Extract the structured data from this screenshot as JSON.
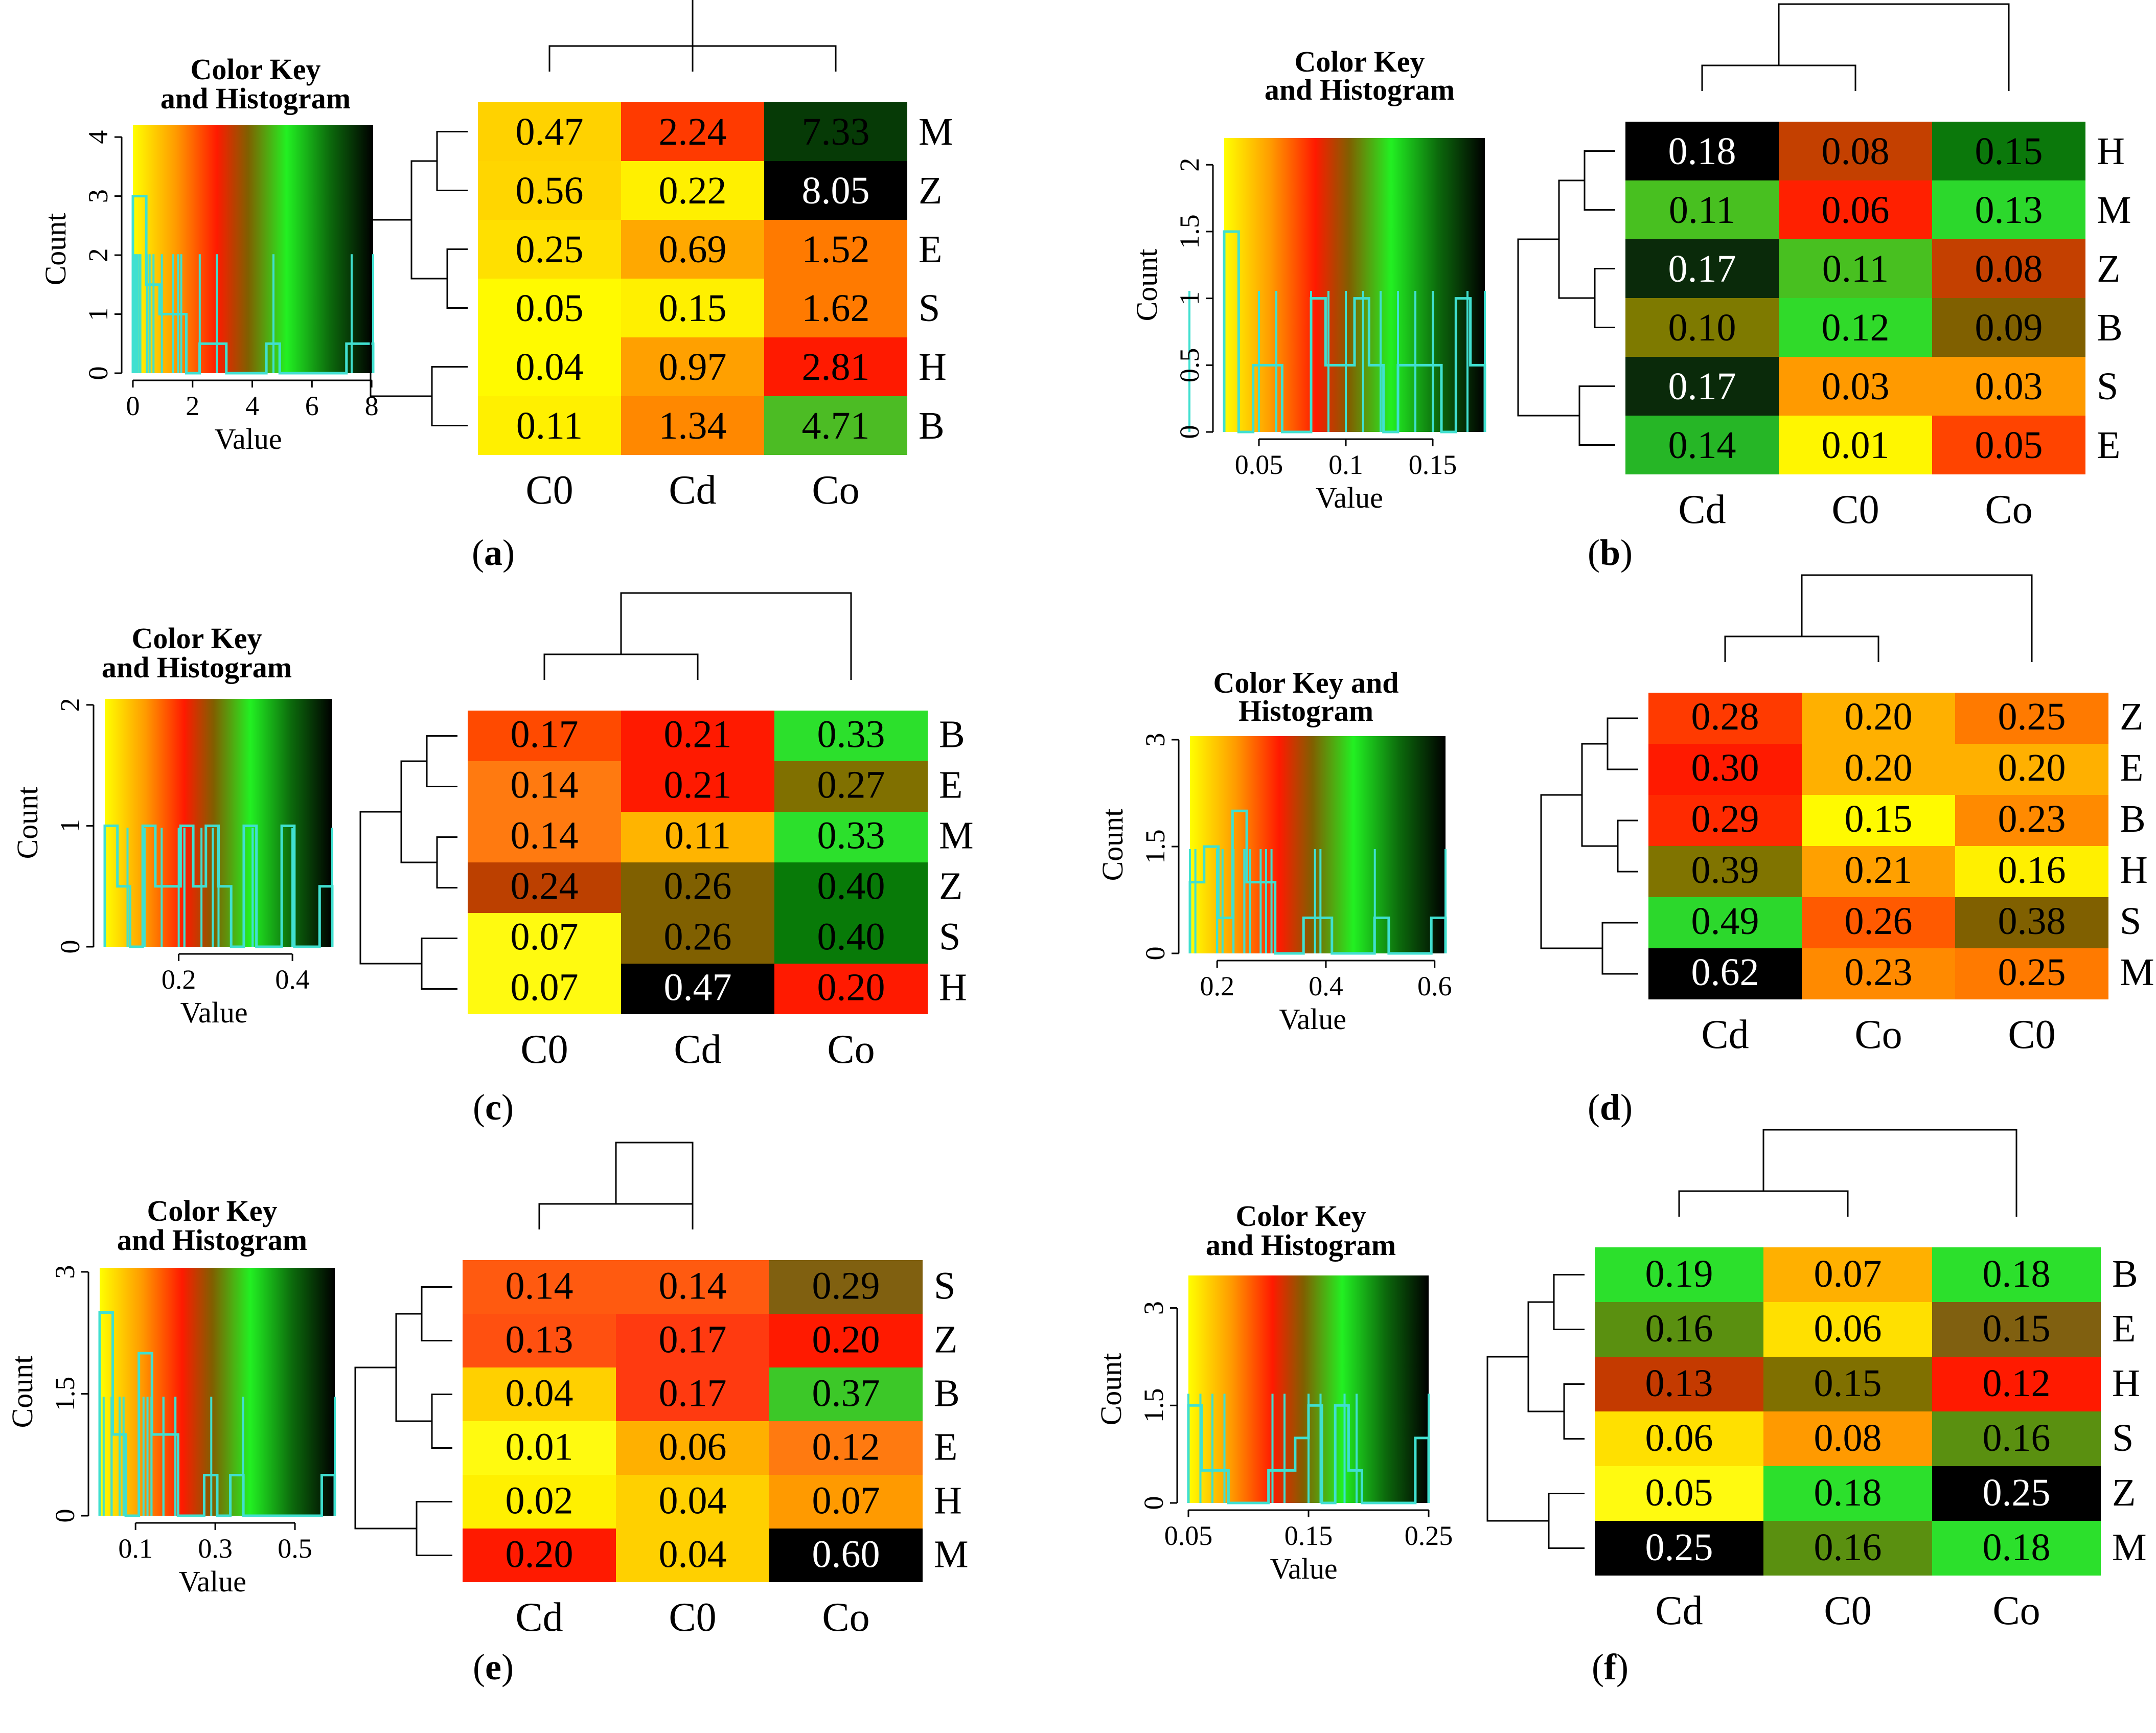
{
  "chart_data": [
    {
      "type": "heatmap",
      "panel_label": "a",
      "color_key_title": [
        "Color Key",
        "and Histogram"
      ],
      "xlabel": "Value",
      "ylabel": "Count",
      "key_xticks": [
        "0",
        "2",
        "4",
        "6",
        "8"
      ],
      "key_xtick_values": [
        0,
        2,
        4,
        6,
        8
      ],
      "key_xrange": [
        0,
        8.05
      ],
      "key_yticks": [
        "0",
        "1",
        "2",
        "3",
        "4"
      ],
      "key_ytick_values": [
        0,
        1,
        2,
        3,
        4
      ],
      "key_yrange": [
        0,
        4.2
      ],
      "histogram_values": [
        0.04,
        0.05,
        0.11,
        0.15,
        0.22,
        0.25,
        0.47,
        0.56,
        0.69,
        0.97,
        1.34,
        1.52,
        1.62,
        2.24,
        2.81,
        4.71,
        7.33,
        8.05
      ],
      "columns": [
        "C0",
        "Cd",
        "Co"
      ],
      "rows": [
        "M",
        "Z",
        "E",
        "S",
        "H",
        "B"
      ],
      "values": [
        [
          "0.47",
          "2.24",
          "7.33"
        ],
        [
          "0.56",
          "0.22",
          "8.05"
        ],
        [
          "0.25",
          "0.69",
          "1.52"
        ],
        [
          "0.05",
          "0.15",
          "1.62"
        ],
        [
          "0.04",
          "0.97",
          "2.81"
        ],
        [
          "0.11",
          "1.34",
          "4.71"
        ]
      ],
      "cell_colors": [
        [
          "#FFD200",
          "#FF3A00",
          "#063A06"
        ],
        [
          "#FFD600",
          "#FFF000",
          "#000000"
        ],
        [
          "#FFE000",
          "#FFA800",
          "#FF7A00"
        ],
        [
          "#FFFA00",
          "#FFF000",
          "#FF7A00"
        ],
        [
          "#FFFA00",
          "#FFA000",
          "#FF1A00"
        ],
        [
          "#FFF000",
          "#FF8800",
          "#4CBC24"
        ]
      ]
    },
    {
      "type": "heatmap",
      "panel_label": "b",
      "color_key_title": [
        "Color Key",
        "and Histogram"
      ],
      "xlabel": "Value",
      "ylabel": "Count",
      "key_xticks": [
        "0.05",
        "0.1",
        "0.15"
      ],
      "key_xtick_values": [
        0.05,
        0.1,
        0.15
      ],
      "key_xrange": [
        0.03,
        0.18
      ],
      "key_yticks": [
        "0",
        "0.5",
        "1",
        "1.5",
        "2"
      ],
      "key_ytick_values": [
        0,
        0.5,
        1,
        1.5,
        2
      ],
      "key_yrange": [
        0,
        2.2
      ],
      "histogram_values": [
        0.01,
        0.03,
        0.03,
        0.05,
        0.06,
        0.08,
        0.08,
        0.09,
        0.1,
        0.11,
        0.11,
        0.12,
        0.13,
        0.14,
        0.15,
        0.17,
        0.17,
        0.18
      ],
      "columns": [
        "Cd",
        "C0",
        "Co"
      ],
      "rows": [
        "H",
        "M",
        "Z",
        "B",
        "S",
        "E"
      ],
      "values": [
        [
          "0.18",
          "0.08",
          "0.15"
        ],
        [
          "0.11",
          "0.06",
          "0.13"
        ],
        [
          "0.17",
          "0.11",
          "0.08"
        ],
        [
          "0.10",
          "0.12",
          "0.09"
        ],
        [
          "0.17",
          "0.03",
          "0.03"
        ],
        [
          "0.14",
          "0.01",
          "0.05"
        ]
      ],
      "cell_colors": [
        [
          "#000000",
          "#C44000",
          "#0B780B"
        ],
        [
          "#48C020",
          "#FF2000",
          "#2CD82C"
        ],
        [
          "#0A2A0A",
          "#48C020",
          "#C44000"
        ],
        [
          "#7E7A00",
          "#30DA2A",
          "#806000"
        ],
        [
          "#0A2A0A",
          "#FF9A00",
          "#FF9A00"
        ],
        [
          "#26B626",
          "#FFF600",
          "#FF4400"
        ]
      ]
    },
    {
      "type": "heatmap",
      "panel_label": "c",
      "color_key_title": [
        "Color Key",
        "and Histogram"
      ],
      "xlabel": "Value",
      "ylabel": "Count",
      "key_xticks": [
        "0.2",
        "0.4"
      ],
      "key_xtick_values": [
        0.2,
        0.4
      ],
      "key_xrange": [
        0.07,
        0.47
      ],
      "key_yticks": [
        "0",
        "1",
        "2"
      ],
      "key_ytick_values": [
        0,
        1,
        2
      ],
      "key_yrange": [
        0,
        2.05
      ],
      "histogram_values": [
        0.07,
        0.07,
        0.11,
        0.14,
        0.14,
        0.17,
        0.2,
        0.21,
        0.21,
        0.24,
        0.26,
        0.26,
        0.27,
        0.33,
        0.33,
        0.4,
        0.4,
        0.47
      ],
      "columns": [
        "C0",
        "Cd",
        "Co"
      ],
      "rows": [
        "B",
        "E",
        "M",
        "Z",
        "S",
        "H"
      ],
      "values": [
        [
          "0.17",
          "0.21",
          "0.33"
        ],
        [
          "0.14",
          "0.21",
          "0.27"
        ],
        [
          "0.14",
          "0.11",
          "0.33"
        ],
        [
          "0.24",
          "0.26",
          "0.40"
        ],
        [
          "0.07",
          "0.26",
          "0.40"
        ],
        [
          "0.07",
          "0.47",
          "0.20"
        ]
      ],
      "cell_colors": [
        [
          "#FF4A00",
          "#FF1A00",
          "#2CE02C"
        ],
        [
          "#FF7A10",
          "#FF1A00",
          "#807000"
        ],
        [
          "#FF7A10",
          "#FFB400",
          "#2CE02C"
        ],
        [
          "#BC4000",
          "#806000",
          "#087A08"
        ],
        [
          "#FFFA10",
          "#806000",
          "#087A08"
        ],
        [
          "#FFFA10",
          "#000000",
          "#FF1A00"
        ]
      ]
    },
    {
      "type": "heatmap",
      "panel_label": "d",
      "color_key_title": [
        "Color Key and",
        "Histogram"
      ],
      "xlabel": "Value",
      "ylabel": "Count",
      "key_xticks": [
        "0.2",
        "0.4",
        "0.6"
      ],
      "key_xtick_values": [
        0.2,
        0.4,
        0.6
      ],
      "key_xrange": [
        0.15,
        0.62
      ],
      "key_yticks": [
        "0",
        "1.5",
        "3"
      ],
      "key_ytick_values": [
        0,
        1.5,
        3
      ],
      "key_yrange": [
        0,
        3.05
      ],
      "histogram_values": [
        0.15,
        0.16,
        0.2,
        0.2,
        0.2,
        0.21,
        0.23,
        0.23,
        0.25,
        0.25,
        0.26,
        0.28,
        0.29,
        0.3,
        0.38,
        0.39,
        0.49,
        0.62
      ],
      "columns": [
        "Cd",
        "Co",
        "C0"
      ],
      "rows": [
        "Z",
        "E",
        "B",
        "H",
        "S",
        "M"
      ],
      "values": [
        [
          "0.28",
          "0.20",
          "0.25"
        ],
        [
          "0.30",
          "0.20",
          "0.20"
        ],
        [
          "0.29",
          "0.15",
          "0.23"
        ],
        [
          "0.39",
          "0.21",
          "0.16"
        ],
        [
          "0.49",
          "0.26",
          "0.38"
        ],
        [
          "0.62",
          "0.23",
          "0.25"
        ]
      ],
      "cell_colors": [
        [
          "#FF3A00",
          "#FFB000",
          "#FF7A00"
        ],
        [
          "#FF1A00",
          "#FFB000",
          "#FFB000"
        ],
        [
          "#FF2A00",
          "#FFFA00",
          "#FF8A00"
        ],
        [
          "#807400",
          "#FFA000",
          "#FFF000"
        ],
        [
          "#2CD82C",
          "#FF5A00",
          "#806000"
        ],
        [
          "#000000",
          "#FF8A00",
          "#FF7A00"
        ]
      ]
    },
    {
      "type": "heatmap",
      "panel_label": "e",
      "color_key_title": [
        "Color Key",
        "and Histogram"
      ],
      "xlabel": "Value",
      "ylabel": "Count",
      "key_xticks": [
        "0.1",
        "0.3",
        "0.5"
      ],
      "key_xtick_values": [
        0.1,
        0.3,
        0.5
      ],
      "key_xrange": [
        0.01,
        0.6
      ],
      "key_yticks": [
        "0",
        "1.5",
        "3"
      ],
      "key_ytick_values": [
        0,
        1.5,
        3
      ],
      "key_yrange": [
        0,
        3.05
      ],
      "histogram_values": [
        0.01,
        0.02,
        0.04,
        0.04,
        0.04,
        0.06,
        0.07,
        0.12,
        0.13,
        0.14,
        0.14,
        0.17,
        0.17,
        0.2,
        0.2,
        0.29,
        0.37,
        0.6
      ],
      "columns": [
        "Cd",
        "C0",
        "Co"
      ],
      "rows": [
        "S",
        "Z",
        "B",
        "E",
        "H",
        "M"
      ],
      "values": [
        [
          "0.14",
          "0.14",
          "0.29"
        ],
        [
          "0.13",
          "0.17",
          "0.20"
        ],
        [
          "0.04",
          "0.17",
          "0.37"
        ],
        [
          "0.01",
          "0.06",
          "0.12"
        ],
        [
          "0.02",
          "0.04",
          "0.07"
        ],
        [
          "0.20",
          "0.04",
          "0.60"
        ]
      ],
      "cell_colors": [
        [
          "#FF5A10",
          "#FF5A10",
          "#806010"
        ],
        [
          "#FF5010",
          "#FF3A10",
          "#FF1A00"
        ],
        [
          "#FFD000",
          "#FF3A10",
          "#3CC828"
        ],
        [
          "#FFFA10",
          "#FFB000",
          "#FF7A10"
        ],
        [
          "#FFF000",
          "#FFD000",
          "#FF9A00"
        ],
        [
          "#FF1A00",
          "#FFD000",
          "#000000"
        ]
      ]
    },
    {
      "type": "heatmap",
      "panel_label": "f",
      "color_key_title": [
        "Color Key",
        "and Histogram"
      ],
      "xlabel": "Value",
      "ylabel": "Count",
      "key_xticks": [
        "0.05",
        "0.15",
        "0.25"
      ],
      "key_xtick_values": [
        0.05,
        0.15,
        0.25
      ],
      "key_xrange": [
        0.05,
        0.25
      ],
      "key_yticks": [
        "0",
        "1.5",
        "3"
      ],
      "key_ytick_values": [
        0,
        1.5,
        3
      ],
      "key_yrange": [
        0,
        3.5
      ],
      "histogram_values": [
        0.05,
        0.06,
        0.06,
        0.07,
        0.08,
        0.12,
        0.13,
        0.15,
        0.15,
        0.16,
        0.16,
        0.16,
        0.18,
        0.18,
        0.18,
        0.19,
        0.25,
        0.25
      ],
      "columns": [
        "Cd",
        "C0",
        "Co"
      ],
      "rows": [
        "B",
        "E",
        "H",
        "S",
        "Z",
        "M"
      ],
      "values": [
        [
          "0.19",
          "0.07",
          "0.18"
        ],
        [
          "0.16",
          "0.06",
          "0.15"
        ],
        [
          "0.13",
          "0.15",
          "0.12"
        ],
        [
          "0.06",
          "0.08",
          "0.16"
        ],
        [
          "0.05",
          "0.18",
          "0.25"
        ],
        [
          "0.25",
          "0.16",
          "0.18"
        ]
      ],
      "cell_colors": [
        [
          "#2CE02C",
          "#FFB000",
          "#2CE02C"
        ],
        [
          "#5A9010",
          "#FFE000",
          "#806010"
        ],
        [
          "#C43A00",
          "#807000",
          "#FF1A00"
        ],
        [
          "#FFE000",
          "#FF9A00",
          "#5A9010"
        ],
        [
          "#FFFA10",
          "#2CE02C",
          "#000000"
        ],
        [
          "#000000",
          "#5A9010",
          "#2CE02C"
        ]
      ]
    }
  ]
}
